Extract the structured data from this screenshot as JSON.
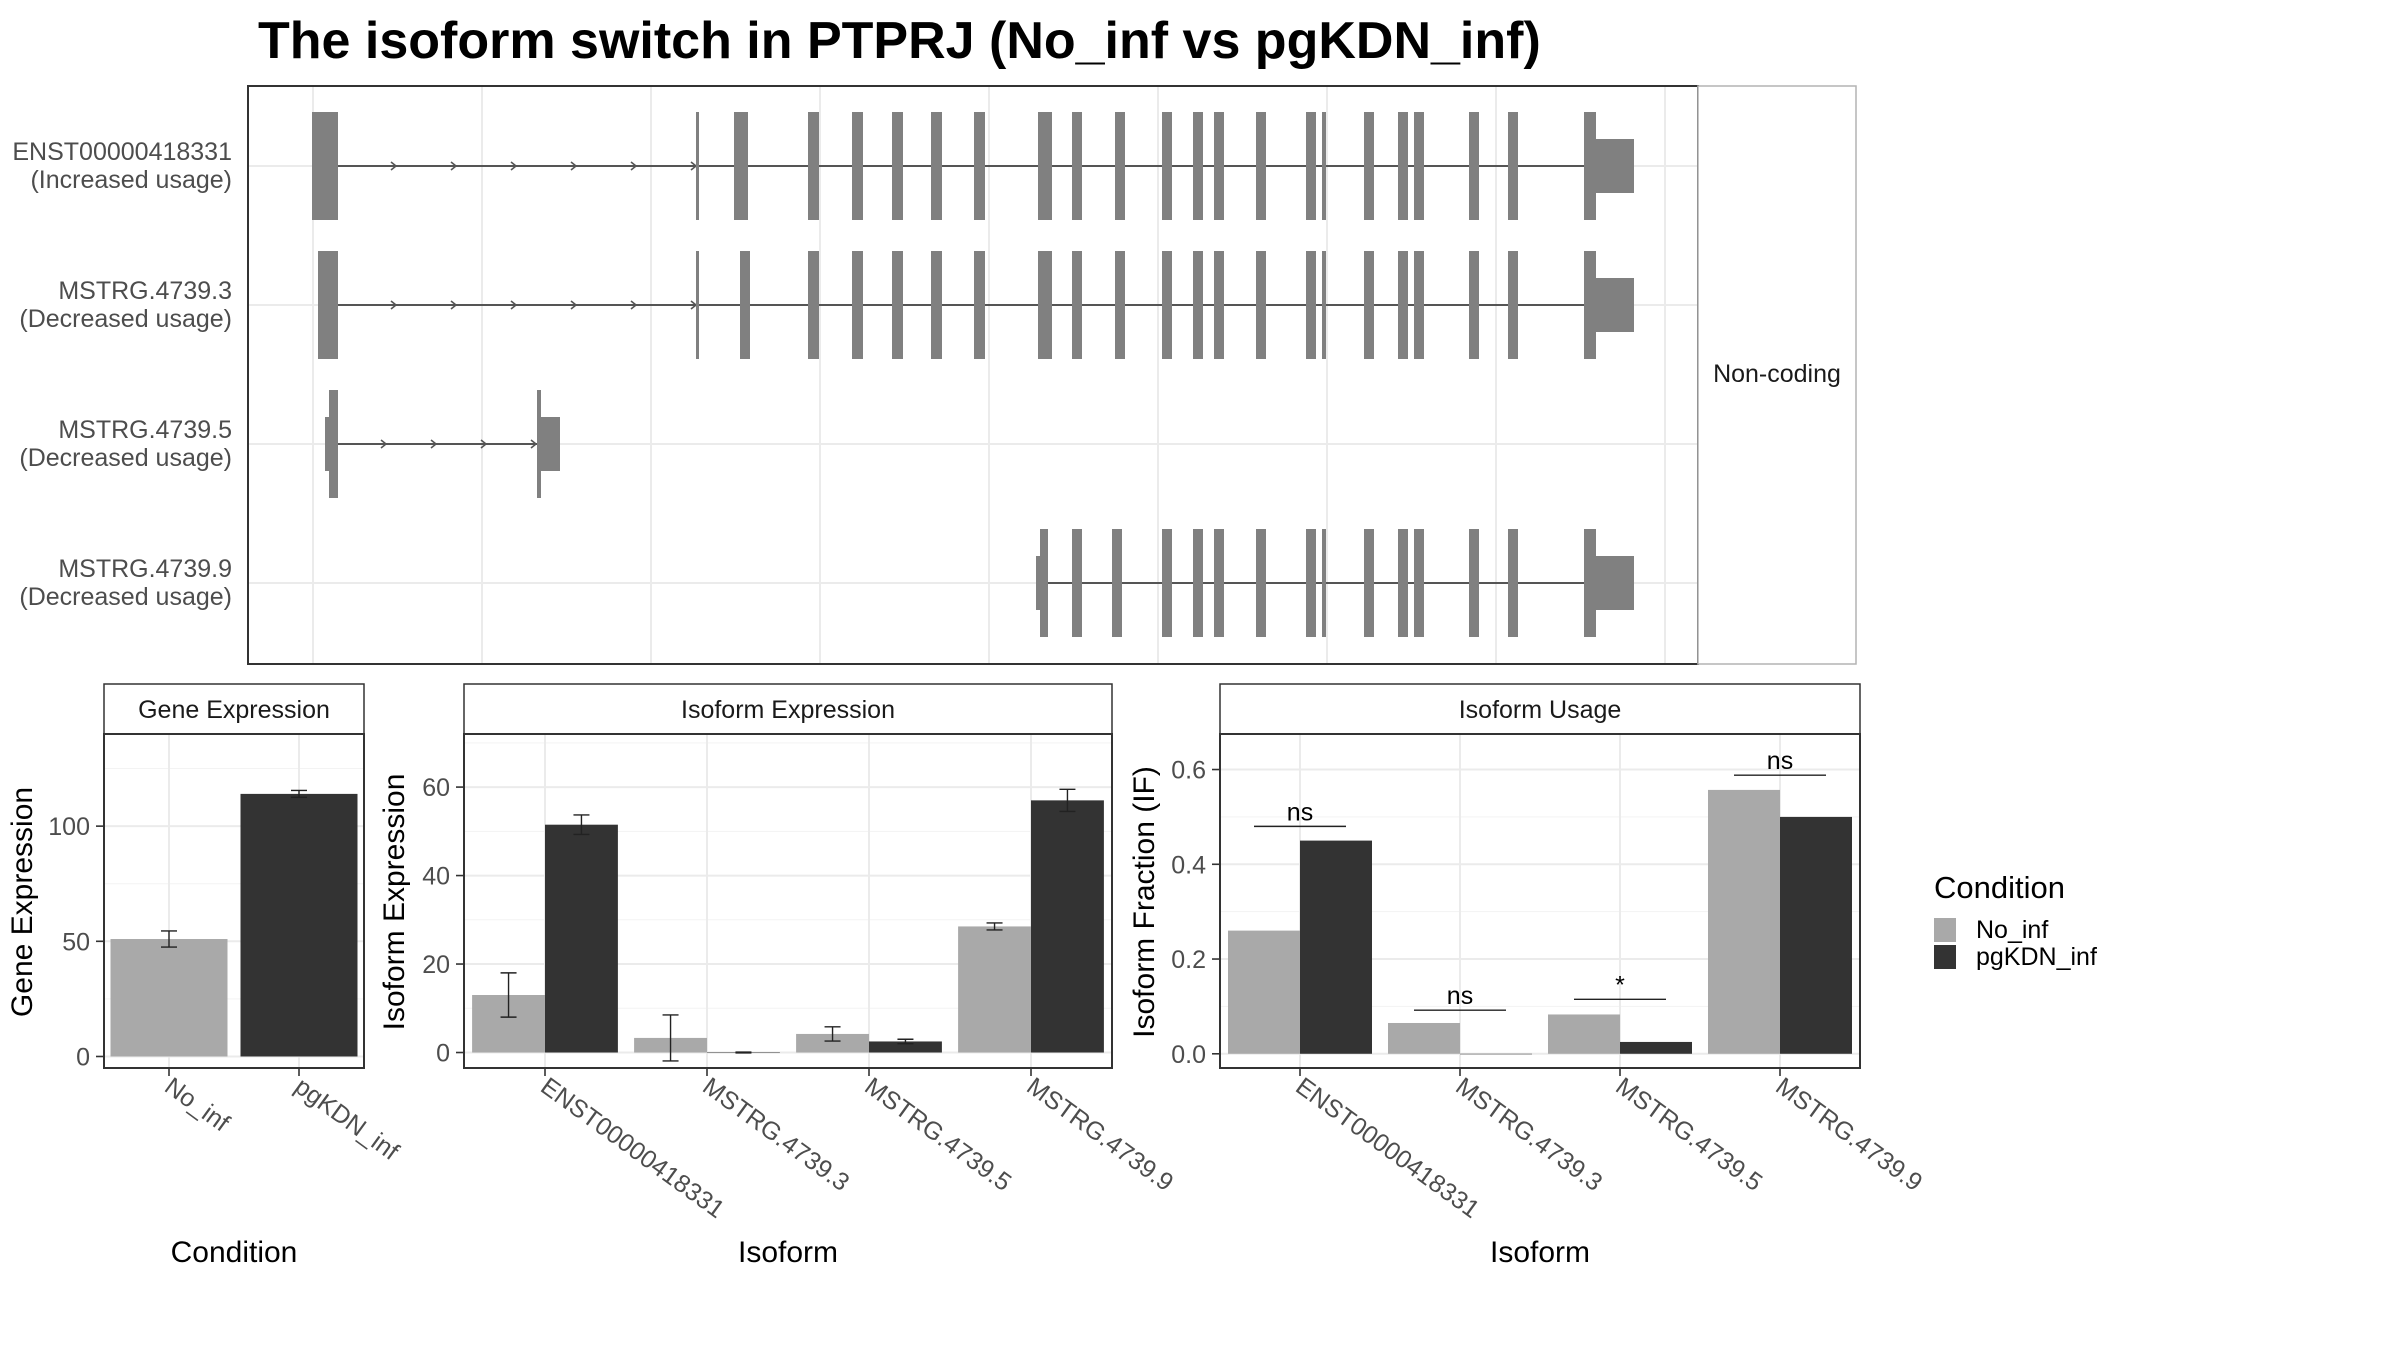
{
  "title": "The isoform switch in PTPRJ (No_inf vs pgKDN_inf)",
  "colors": {
    "No_inf": "#a9a9a9",
    "pgKDN_inf": "#333333",
    "exon": "#808080",
    "intron": "#555555",
    "grid": "#ebebeb",
    "panel_border": "#333333",
    "strip_border": "#b3b3b3"
  },
  "chart_data": [
    {
      "type": "gene-structure",
      "strip_label": "Non-coding",
      "isoforms": [
        {
          "name": "ENST00000418331",
          "usage": "(Increased usage)"
        },
        {
          "name": "MSTRG.4739.3",
          "usage": "(Decreased usage)"
        },
        {
          "name": "MSTRG.4739.5",
          "usage": "(Decreased usage)"
        },
        {
          "name": "MSTRG.4739.9",
          "usage": "(Decreased usage)"
        }
      ]
    },
    {
      "type": "bar",
      "panel": "Gene Expression",
      "xlabel": "Condition",
      "ylabel": "Gene Expression",
      "categories": [
        "No_inf",
        "pgKDN_inf"
      ],
      "values": [
        51,
        114
      ],
      "errors": [
        3.5,
        1.5
      ],
      "ylim": [
        -5,
        140
      ],
      "yticks": [
        0,
        50,
        100
      ]
    },
    {
      "type": "bar",
      "panel": "Isoform Expression",
      "xlabel": "Isoform",
      "ylabel": "Isoform Expression",
      "categories": [
        "ENST00000418331",
        "MSTRG.4739.3",
        "MSTRG.4739.5",
        "MSTRG.4739.9"
      ],
      "series": [
        {
          "name": "No_inf",
          "values": [
            13,
            3.3,
            4.2,
            28.5
          ],
          "errors": [
            5,
            5.2,
            1.6,
            0.8
          ]
        },
        {
          "name": "pgKDN_inf",
          "values": [
            51.5,
            0,
            2.5,
            57
          ],
          "errors": [
            2.2,
            0.1,
            0.5,
            2.5
          ]
        }
      ],
      "ylim": [
        -3.5,
        72
      ],
      "yticks": [
        0,
        20,
        40,
        60
      ]
    },
    {
      "type": "bar",
      "panel": "Isoform Usage",
      "xlabel": "Isoform",
      "ylabel": "Isoform Fraction (IF)",
      "categories": [
        "ENST00000418331",
        "MSTRG.4739.3",
        "MSTRG.4739.5",
        "MSTRG.4739.9"
      ],
      "series": [
        {
          "name": "No_inf",
          "values": [
            0.26,
            0.065,
            0.083,
            0.557
          ]
        },
        {
          "name": "pgKDN_inf",
          "values": [
            0.45,
            0.0,
            0.025,
            0.5
          ]
        }
      ],
      "significance": [
        {
          "label": "ns",
          "y": 0.48
        },
        {
          "label": "ns",
          "y": 0.092
        },
        {
          "label": "*",
          "y": 0.115
        },
        {
          "label": "ns",
          "y": 0.588
        }
      ],
      "ylim": [
        -0.03,
        0.675
      ],
      "yticks": [
        0.0,
        0.2,
        0.4,
        0.6
      ],
      "ytick_labels": [
        "0.0",
        "0.2",
        "0.4",
        "0.6"
      ]
    }
  ],
  "legend": {
    "title": "Condition",
    "items": [
      {
        "label": "No_inf",
        "color": "#a9a9a9"
      },
      {
        "label": "pgKDN_inf",
        "color": "#333333"
      }
    ]
  }
}
